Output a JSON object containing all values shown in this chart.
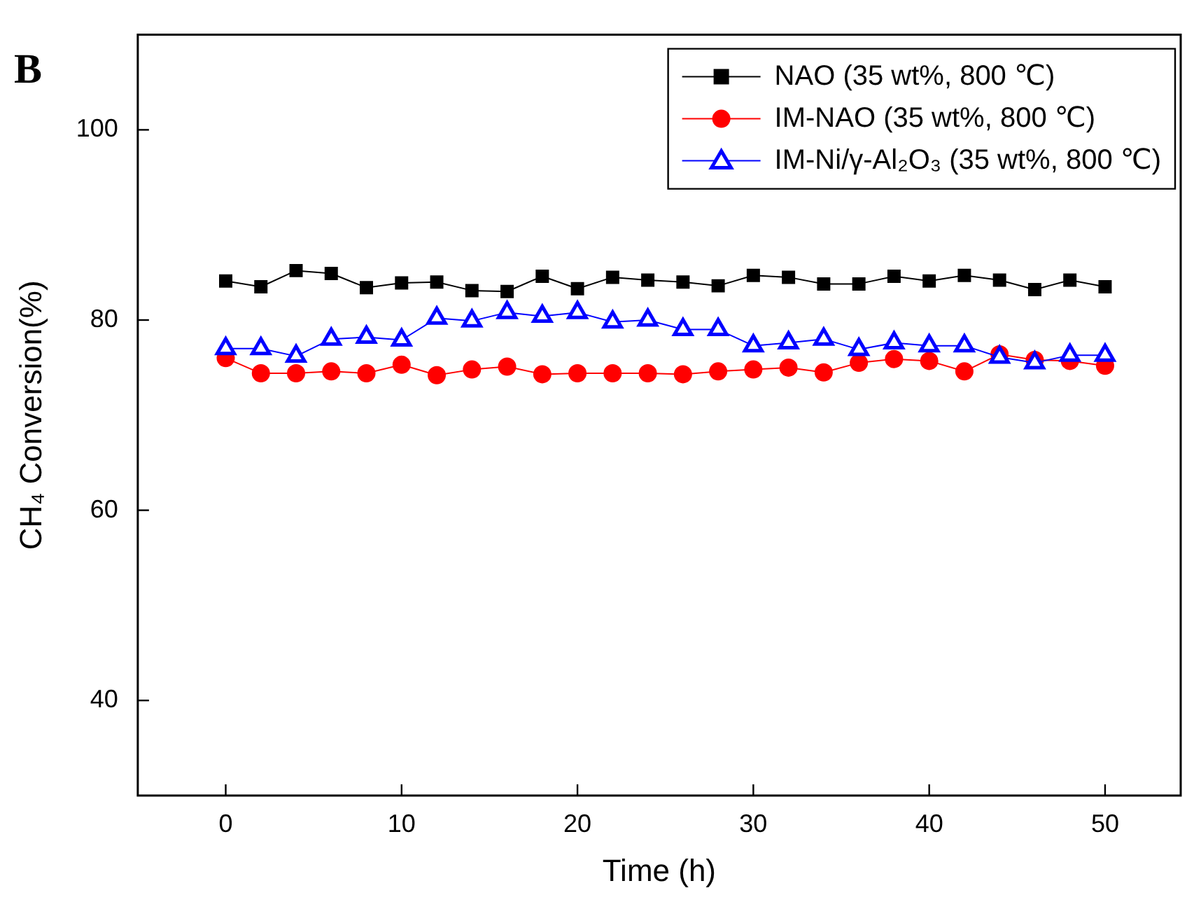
{
  "chart_data": {
    "type": "line",
    "xlabel": "Time (h)",
    "ylabel": "CH₄ Conversion(%)",
    "annotations": [
      "B"
    ],
    "x": [
      0,
      2,
      4,
      6,
      8,
      10,
      12,
      14,
      16,
      18,
      20,
      22,
      24,
      26,
      28,
      30,
      32,
      34,
      36,
      38,
      40,
      42,
      44,
      46,
      48,
      50
    ],
    "series": [
      {
        "name": "NAO (35 wt%, 800 ℃)",
        "color": "#000000",
        "marker": "square",
        "values": [
          84.1,
          83.5,
          85.2,
          84.9,
          83.4,
          83.9,
          84.0,
          83.1,
          83.0,
          84.6,
          83.3,
          84.5,
          84.2,
          84.0,
          83.6,
          84.7,
          84.5,
          83.8,
          83.8,
          84.6,
          84.1,
          84.7,
          84.2,
          83.2,
          84.2,
          83.5
        ]
      },
      {
        "name": "IM-NAO (35 wt%, 800 ℃)",
        "color": "#ff0000",
        "marker": "circle",
        "values": [
          76.0,
          74.4,
          74.4,
          74.6,
          74.4,
          75.3,
          74.2,
          74.8,
          75.1,
          74.3,
          74.4,
          74.4,
          74.4,
          74.3,
          74.6,
          74.8,
          75.0,
          74.5,
          75.5,
          75.9,
          75.7,
          74.6,
          76.4,
          75.8,
          75.7,
          75.2
        ]
      },
      {
        "name": "IM-Ni/γ-Al₂O₃ (35 wt%, 800 ℃)",
        "color": "#0000ff",
        "marker": "triangle",
        "values": [
          77.0,
          77.0,
          76.2,
          78.0,
          78.2,
          77.9,
          80.2,
          79.9,
          80.8,
          80.4,
          80.8,
          79.8,
          80.0,
          79.0,
          79.0,
          77.3,
          77.6,
          78.0,
          76.9,
          77.6,
          77.3,
          77.3,
          76.1,
          75.5,
          76.3,
          76.3
        ]
      }
    ],
    "xlim": [
      -5,
      54.3
    ],
    "xticks": [
      0,
      10,
      20,
      30,
      40,
      50
    ],
    "ylim": [
      30,
      110
    ],
    "yticks": [
      40,
      60,
      80,
      100
    ],
    "grid": false,
    "legend": "top right"
  }
}
